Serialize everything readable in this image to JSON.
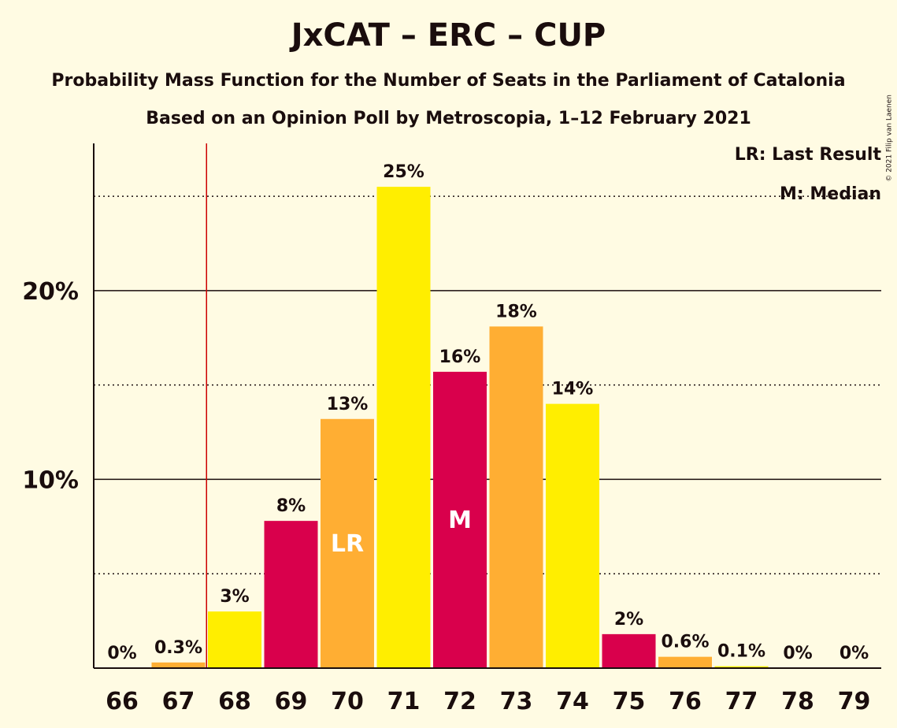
{
  "chart_data": {
    "type": "bar",
    "title": "JxCAT – ERC – CUP",
    "subtitle": "Probability Mass Function for the Number of Seats in the Parliament of Catalonia",
    "subtitle2": "Based on an Opinion Poll by Metroscopia, 1–12 February 2021",
    "copyright": "© 2021 Filip van Laenen",
    "legend": {
      "lr": "LR: Last Result",
      "m": "M: Median"
    },
    "categories": [
      "66",
      "67",
      "68",
      "69",
      "70",
      "71",
      "72",
      "73",
      "74",
      "75",
      "76",
      "77",
      "78",
      "79"
    ],
    "values": [
      0,
      0.3,
      3,
      7.8,
      13.2,
      25.5,
      15.7,
      18.1,
      14,
      1.8,
      0.6,
      0.1,
      0,
      0
    ],
    "labels": [
      "0%",
      "0.3%",
      "3%",
      "8%",
      "13%",
      "25%",
      "16%",
      "18%",
      "14%",
      "2%",
      "0.6%",
      "0.1%",
      "0%",
      "0%"
    ],
    "colors": [
      "#ffee00",
      "#ffae33",
      "#ffee00",
      "#d9004c",
      "#ffae33",
      "#ffee00",
      "#d9004c",
      "#ffae33",
      "#ffee00",
      "#d9004c",
      "#ffae33",
      "#ffee00",
      "#d9004c",
      "#ffae33"
    ],
    "ylim": [
      0,
      27.8
    ],
    "yticks": [
      {
        "value": 10,
        "label": "10%"
      },
      {
        "value": 20,
        "label": "20%"
      }
    ],
    "dotted_lines": [
      5,
      15,
      25
    ],
    "last_result": {
      "category": "70",
      "marker": "LR",
      "line_between": [
        "67",
        "68"
      ]
    },
    "median": {
      "category": "72",
      "marker": "M"
    },
    "line_color": "#cc0000"
  }
}
